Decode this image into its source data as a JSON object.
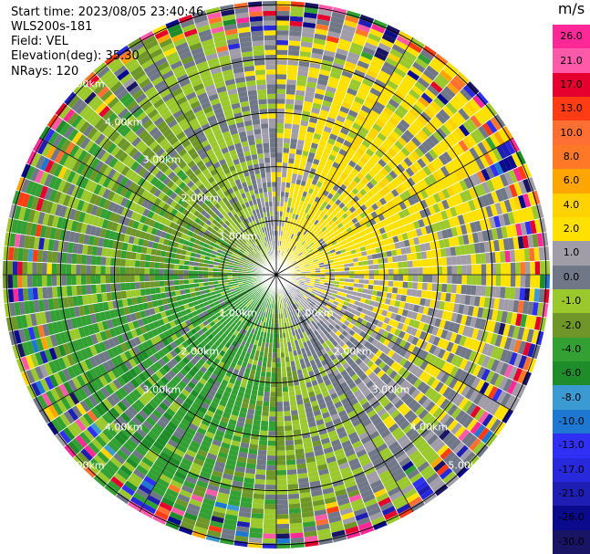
{
  "header": {
    "start_time": "Start time: 2023/08/05 23:40:46",
    "instrument": "WLS200s-181",
    "field": "Field: VEL",
    "elevation": "Elevation(deg): 35.30",
    "nrays": "NRays: 120"
  },
  "chart_data": {
    "type": "heatmap",
    "projection": "polar PPI",
    "field": "VEL",
    "unit": "m/s",
    "nrays": 120,
    "range_rings_km": [
      1.0,
      2.0,
      3.0,
      4.0,
      5.0
    ],
    "range_labels": [
      "1.00km",
      "2.00km",
      "3.00km",
      "4.00km",
      "5.00km"
    ],
    "max_range_km": 5.0,
    "pattern": "negative velocities (green) to the west / south-west, positive velocities (yellow/orange) to the east / north-east, noisy gray and mixed colors at far range",
    "colorbar": {
      "boundaries": [
        -30,
        -26,
        -21,
        -17,
        -13,
        -10,
        -8,
        -6,
        -4,
        -2,
        -1,
        0,
        1,
        2,
        4,
        6,
        8,
        10,
        13,
        17,
        21,
        26,
        30
      ],
      "colors": [
        "#1a1464",
        "#0a0a8c",
        "#1e1eb4",
        "#2828dc",
        "#2f2ff5",
        "#1e78d2",
        "#3c9ad2",
        "#1e8c28",
        "#32a032",
        "#6e9628",
        "#9bc82d",
        "#707888",
        "#a09ca8",
        "#ffe100",
        "#ffd200",
        "#ffa500",
        "#ff7828",
        "#ff6e32",
        "#ff3c14",
        "#e6002d",
        "#ff5aaa",
        "#ff2896"
      ],
      "tick_labels": [
        "26.0",
        "21.0",
        "17.0",
        "13.0",
        "10.0",
        "8.0",
        "6.0",
        "4.0",
        "2.0",
        "1.0",
        "0.0",
        "-1.0",
        "-2.0",
        "-4.0",
        "-6.0",
        "-8.0",
        "-10.0",
        "-13.0",
        "-17.0",
        "-21.0",
        "-26.0",
        "-30.0"
      ]
    }
  }
}
